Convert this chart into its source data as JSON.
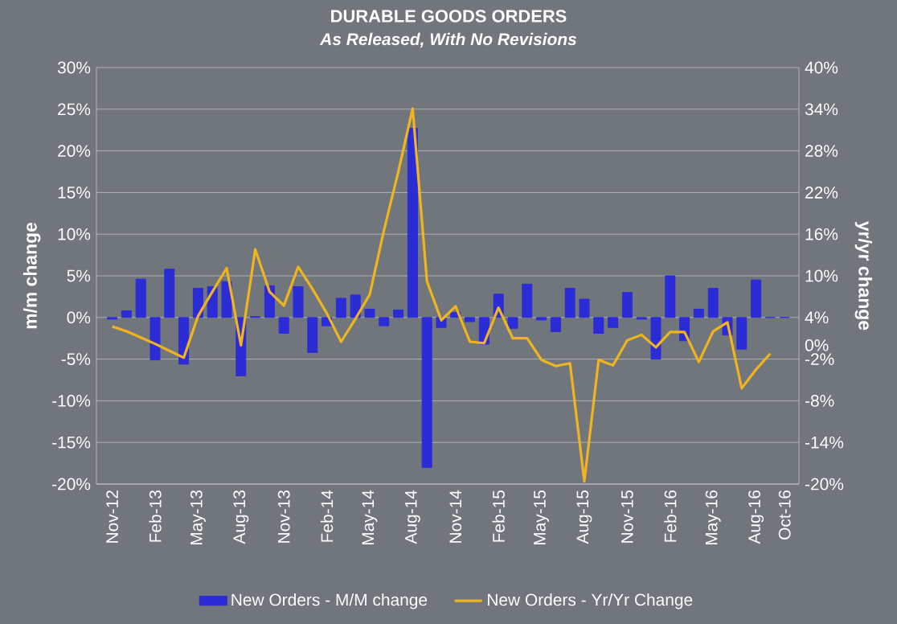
{
  "chart_data": {
    "type": "bar",
    "title": "DURABLE GOODS ORDERS",
    "subtitle": "As Released, With No Revisions",
    "ylabel": "m/m change",
    "y2label": "yr/yr change",
    "categories": [
      "Nov-12",
      null,
      null,
      "Feb-13",
      null,
      null,
      "May-13",
      null,
      null,
      "Aug-13",
      null,
      null,
      "Nov-13",
      null,
      null,
      "Feb-14",
      null,
      null,
      "May-14",
      null,
      null,
      "Aug-14",
      null,
      null,
      "Nov-14",
      null,
      null,
      "Feb-15",
      null,
      null,
      "May-15",
      null,
      null,
      "Aug-15",
      null,
      null,
      "Nov-15",
      null,
      null,
      "Feb-16",
      null,
      null,
      "May-16",
      null,
      null,
      "Aug-16",
      null,
      "Oct-16"
    ],
    "series": [
      {
        "name": "New Orders - M/M change",
        "axis": "y",
        "color": "#2c2cd6",
        "values": [
          -0.2,
          0.8,
          4.6,
          -5.1,
          5.8,
          -5.6,
          3.5,
          3.7,
          4.3,
          -7.0,
          0.1,
          3.8,
          -1.9,
          3.7,
          -4.2,
          -1.0,
          2.3,
          2.7,
          1.0,
          -1.0,
          0.9,
          22.7,
          -18.0,
          -1.2,
          0.6,
          -0.5,
          -3.2,
          2.8,
          -1.3,
          4.0,
          -0.3,
          -1.7,
          3.5,
          2.2,
          -1.9,
          -1.2,
          3.0,
          -0.2,
          -5.0,
          5.0,
          -2.8,
          1.0,
          3.5,
          -2.1,
          -3.8,
          4.5,
          0,
          0
        ]
      },
      {
        "name": "New Orders - Yr/Yr Change",
        "type": "line",
        "axis": "y2",
        "color": "#f0b41e",
        "values": [
          2.7,
          2.0,
          1.1,
          0.2,
          -0.8,
          -1.8,
          4.2,
          7.7,
          11.1,
          0.0,
          13.8,
          7.7,
          5.7,
          11.3,
          8.1,
          4.6,
          0.5,
          3.8,
          7.3,
          16.6,
          25.0,
          34.1,
          9.2,
          3.6,
          5.6,
          0.5,
          0.3,
          5.4,
          1.0,
          1.0,
          -2.1,
          -3.0,
          -2.6,
          -19.6,
          -2.1,
          -2.9,
          0.7,
          1.5,
          -0.3,
          1.9,
          1.9,
          -2.4,
          2.0,
          3.3,
          -6.2,
          -3.5,
          -1.2,
          null
        ]
      }
    ],
    "ylim": [
      -20,
      30
    ],
    "yticks": [
      {
        "value": -20,
        "label": "-20%"
      },
      {
        "value": -15,
        "label": "-15%"
      },
      {
        "value": -10,
        "label": "-10%"
      },
      {
        "value": -5,
        "label": "-5%"
      },
      {
        "value": 0,
        "label": "0%"
      },
      {
        "value": 5,
        "label": "5%"
      },
      {
        "value": 10,
        "label": "10%"
      },
      {
        "value": 15,
        "label": "15%"
      },
      {
        "value": 20,
        "label": "20%"
      },
      {
        "value": 25,
        "label": "25%"
      },
      {
        "value": 30,
        "label": "30%"
      }
    ],
    "y2lim": [
      -20,
      40
    ],
    "y2ticks": [
      {
        "value": -20,
        "label": "-20%"
      },
      {
        "value": -14,
        "label": "-14%"
      },
      {
        "value": -8,
        "label": "-8%"
      },
      {
        "value": -2,
        "label": "-2%"
      },
      {
        "value": 0,
        "label": "0%"
      },
      {
        "value": 4,
        "label": "4%"
      },
      {
        "value": 10,
        "label": "10%"
      },
      {
        "value": 16,
        "label": "16%"
      },
      {
        "value": 22,
        "label": "22%"
      },
      {
        "value": 28,
        "label": "28%"
      },
      {
        "value": 34,
        "label": "34%"
      },
      {
        "value": 40,
        "label": "40%"
      }
    ],
    "grid": "y",
    "legend": "bottom"
  }
}
